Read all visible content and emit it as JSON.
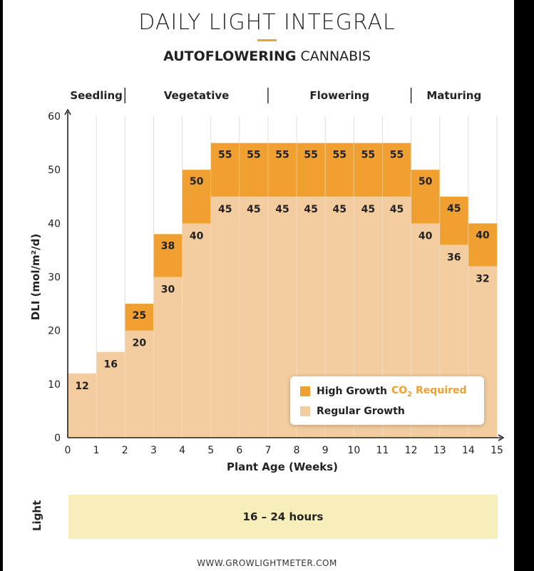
{
  "header": {
    "title": "DAILY LIGHT INTEGRAL",
    "subtitle_bold": "AUTOFLOWERING",
    "subtitle_rest": " CANNABIS"
  },
  "stages": [
    "Seedling",
    "Vegetative",
    "Flowering",
    "Maturing"
  ],
  "legend": {
    "high_label": "High Growth",
    "high_note_prefix": "CO",
    "high_note_sub": "2",
    "high_note_suffix": " Required",
    "regular_label": "Regular Growth"
  },
  "light": {
    "label": "Light",
    "value": "16 – 24 hours"
  },
  "footer": "WWW.GROWLIGHTMETER.COM",
  "colors": {
    "high": "#f0a030",
    "regular": "#f3cc9f",
    "light_band": "#f8eebb",
    "accent_rule": "#f0a030"
  },
  "chart_data": {
    "type": "bar",
    "xlabel": "Plant Age (Weeks)",
    "ylabel": "DLI (mol/m²/d)",
    "xlim": [
      0,
      15
    ],
    "ylim": [
      0,
      60
    ],
    "x_ticks": [
      0,
      1,
      2,
      3,
      4,
      5,
      6,
      7,
      8,
      9,
      10,
      11,
      12,
      13,
      14,
      15
    ],
    "y_ticks": [
      0,
      10,
      20,
      30,
      40,
      50,
      60
    ],
    "grid": "vertical",
    "stage_boundaries_weeks": [
      0,
      2,
      7,
      12,
      15
    ],
    "categories": [
      "0-1",
      "1-2",
      "2-3",
      "3-4",
      "4-5",
      "5-6",
      "6-7",
      "7-8",
      "8-9",
      "9-10",
      "10-11",
      "11-12",
      "12-13",
      "13-14",
      "14-15"
    ],
    "series": [
      {
        "name": "Regular Growth",
        "values": [
          12,
          16,
          20,
          30,
          40,
          45,
          45,
          45,
          45,
          45,
          45,
          45,
          40,
          36,
          32
        ]
      },
      {
        "name": "High Growth",
        "values": [
          null,
          null,
          25,
          38,
          50,
          55,
          55,
          55,
          55,
          55,
          55,
          55,
          50,
          45,
          40
        ]
      }
    ],
    "legend_position": "bottom-right"
  }
}
